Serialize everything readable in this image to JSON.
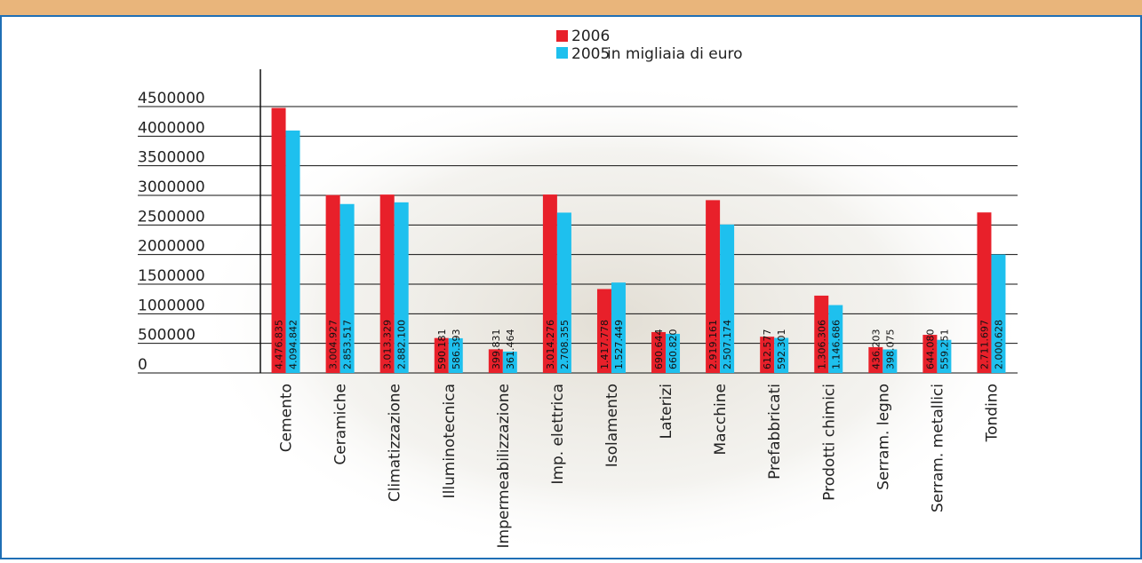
{
  "chart_data": {
    "type": "bar",
    "annotation": "in migliaia di euro",
    "categories": [
      "Cemento",
      "Ceramiche",
      "Climatizzazione",
      "Illuminotecnica",
      "Impermeabilizzazione",
      "Imp. elettrica",
      "Isolamento",
      "Laterizi",
      "Macchine",
      "Prefabbricati",
      "Prodotti chimici",
      "Serram. legno",
      "Serram. metallici",
      "Tondino"
    ],
    "series": [
      {
        "name": "2006",
        "color": "#e8202a",
        "values": [
          4476835,
          3004927,
          3013329,
          590181,
          399831,
          3014276,
          1417778,
          690644,
          2919161,
          612577,
          1306306,
          436203,
          644080,
          2711697
        ],
        "value_labels": [
          "4.476.835",
          "3.004.927",
          "3.013.329",
          "590.181",
          "399.831",
          "3.014.276",
          "1.417.778",
          "690.644",
          "2.919.161",
          "612.577",
          "1.306.306",
          "436.203",
          "644.080",
          "2.711.697"
        ]
      },
      {
        "name": "2005",
        "color": "#1ec0ee",
        "values": [
          4094842,
          2853517,
          2882100,
          586393,
          361464,
          2708355,
          1527449,
          660820,
          2507174,
          592301,
          1146686,
          398075,
          559251,
          2000628
        ],
        "value_labels": [
          "4.094.842",
          "2.853.517",
          "2.882.100",
          "586.393",
          "361.464",
          "2.708.355",
          "1.527.449",
          "660.820",
          "2.507.174",
          "592.301",
          "1.146.686",
          "398.075",
          "559.251",
          "2.000.628"
        ]
      }
    ],
    "ylim": [
      0,
      5130000
    ],
    "yticks": [
      0,
      500000,
      1000000,
      1500000,
      2000000,
      2500000,
      3000000,
      3500000,
      4000000,
      4500000
    ],
    "grid": true
  }
}
